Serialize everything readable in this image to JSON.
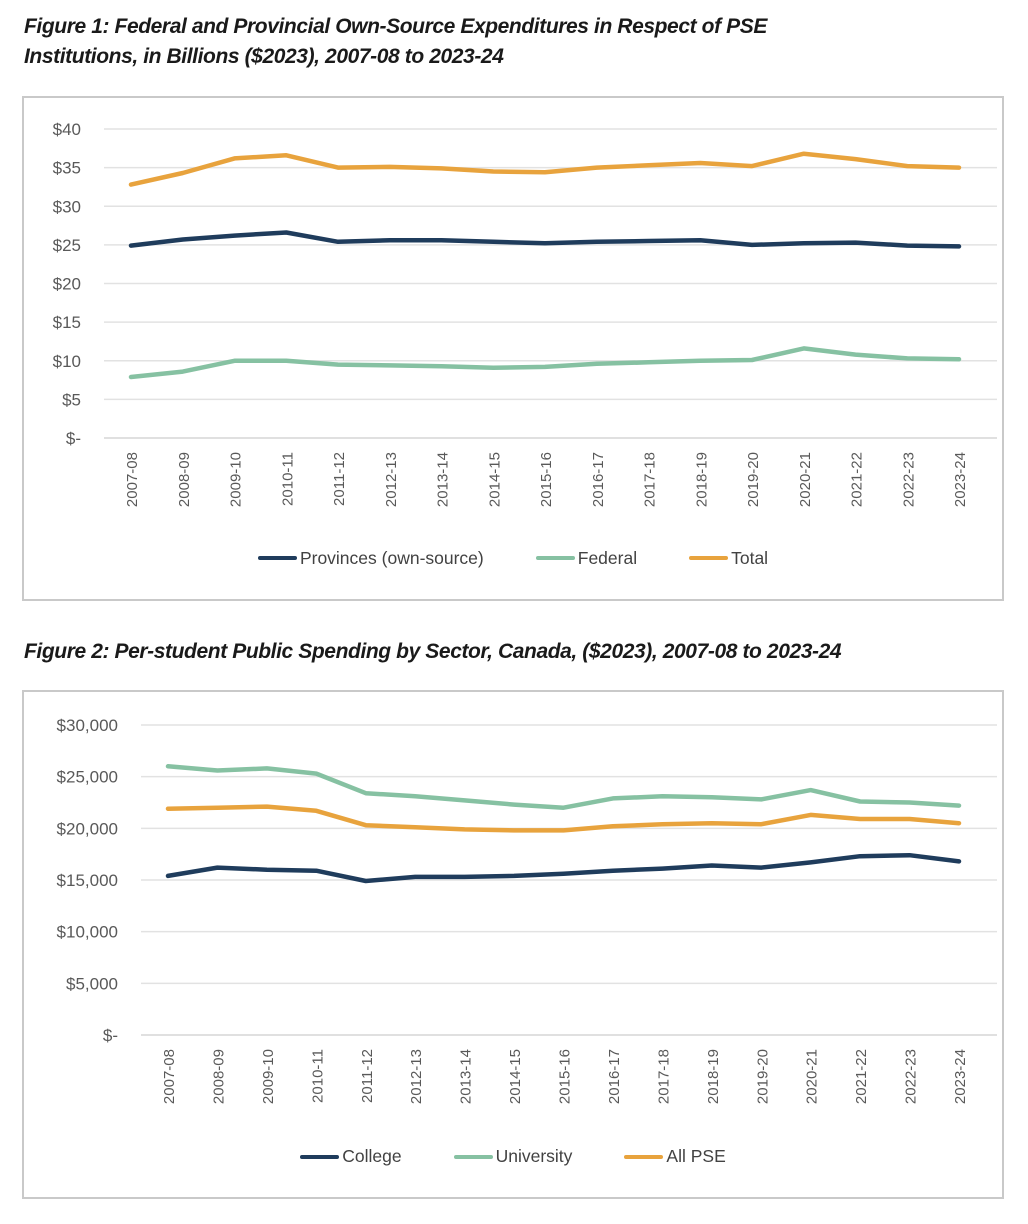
{
  "page": {
    "background": "#ffffff"
  },
  "figure1": {
    "title_lines": [
      "Figure 1: Federal and Provincial Own-Source Expenditures in Respect of PSE",
      "Institutions, in Billions ($2023), 2007-08 to 2023-24"
    ]
  },
  "figure2": {
    "title_lines": [
      "Figure 2: Per-student Public Spending by Sector, Canada, ($2023), 2007-08 to 2023-24"
    ]
  },
  "colors": {
    "navy": "#1f3c5c",
    "green": "#86c1a2",
    "orange": "#e8a33d",
    "grid": "#e2e2e2",
    "axis_line": "#d6d6d6",
    "axis_text": "#595959",
    "legend_text": "#424242",
    "border": "#c9c9c9",
    "title_text": "#1a1a1a"
  },
  "chart_data": [
    {
      "type": "line",
      "title": "Figure 1: Federal and Provincial Own-Source Expenditures in Respect of PSE Institutions, in Billions ($2023), 2007-08 to 2023-24",
      "xlabel": "",
      "ylabel": "",
      "ylim": [
        0,
        40
      ],
      "grid": true,
      "legend_position": "bottom",
      "categories": [
        "2007-08",
        "2008-09",
        "2009-10",
        "2010-11",
        "2011-12",
        "2012-13",
        "2013-14",
        "2014-15",
        "2015-16",
        "2016-17",
        "2017-18",
        "2018-19",
        "2019-20",
        "2020-21",
        "2021-22",
        "2022-23",
        "2023-24"
      ],
      "yticks": [
        {
          "value": 40,
          "label": "$40"
        },
        {
          "value": 35,
          "label": "$35"
        },
        {
          "value": 30,
          "label": "$30"
        },
        {
          "value": 25,
          "label": "$25"
        },
        {
          "value": 20,
          "label": "$20"
        },
        {
          "value": 15,
          "label": "$15"
        },
        {
          "value": 10,
          "label": "$10"
        },
        {
          "value": 5,
          "label": "$5"
        },
        {
          "value": 0,
          "label": "$-"
        }
      ],
      "series": [
        {
          "name": "Provinces (own-source)",
          "color_key": "navy",
          "values": [
            24.9,
            25.7,
            26.2,
            26.6,
            25.4,
            25.6,
            25.6,
            25.4,
            25.2,
            25.4,
            25.5,
            25.6,
            25.0,
            25.2,
            25.3,
            24.9,
            24.8
          ]
        },
        {
          "name": "Federal",
          "color_key": "green",
          "values": [
            7.9,
            8.6,
            10.0,
            10.0,
            9.5,
            9.4,
            9.3,
            9.1,
            9.2,
            9.6,
            9.8,
            10.0,
            10.1,
            11.6,
            10.8,
            10.3,
            10.2
          ]
        },
        {
          "name": "Total",
          "color_key": "orange",
          "values": [
            32.8,
            34.3,
            36.2,
            36.6,
            35.0,
            35.1,
            34.9,
            34.5,
            34.4,
            35.0,
            35.3,
            35.6,
            35.2,
            36.8,
            36.1,
            35.2,
            35.0
          ]
        }
      ]
    },
    {
      "type": "line",
      "title": "Figure 2: Per-student Public Spending by Sector, Canada, ($2023), 2007-08 to 2023-24",
      "xlabel": "",
      "ylabel": "",
      "ylim": [
        0,
        30000
      ],
      "grid": true,
      "legend_position": "bottom",
      "categories": [
        "2007-08",
        "2008-09",
        "2009-10",
        "2010-11",
        "2011-12",
        "2012-13",
        "2013-14",
        "2014-15",
        "2015-16",
        "2016-17",
        "2017-18",
        "2018-19",
        "2019-20",
        "2020-21",
        "2021-22",
        "2022-23",
        "2023-24"
      ],
      "yticks": [
        {
          "value": 30000,
          "label": "$30,000"
        },
        {
          "value": 25000,
          "label": "$25,000"
        },
        {
          "value": 20000,
          "label": "$20,000"
        },
        {
          "value": 15000,
          "label": "$15,000"
        },
        {
          "value": 10000,
          "label": "$10,000"
        },
        {
          "value": 5000,
          "label": "$5,000"
        },
        {
          "value": 0,
          "label": "$-"
        }
      ],
      "series": [
        {
          "name": "College",
          "color_key": "navy",
          "values": [
            15400,
            16200,
            16000,
            15900,
            14900,
            15300,
            15300,
            15400,
            15600,
            15900,
            16100,
            16400,
            16200,
            16700,
            17300,
            17400,
            16800
          ]
        },
        {
          "name": "University",
          "color_key": "green",
          "values": [
            26000,
            25600,
            25800,
            25300,
            23400,
            23100,
            22700,
            22300,
            22000,
            22900,
            23100,
            23000,
            22800,
            23700,
            22600,
            22500,
            22200
          ]
        },
        {
          "name": "All PSE",
          "color_key": "orange",
          "values": [
            21900,
            22000,
            22100,
            21700,
            20300,
            20100,
            19900,
            19800,
            19800,
            20200,
            20400,
            20500,
            20400,
            21300,
            20900,
            20900,
            20500
          ]
        }
      ]
    }
  ]
}
